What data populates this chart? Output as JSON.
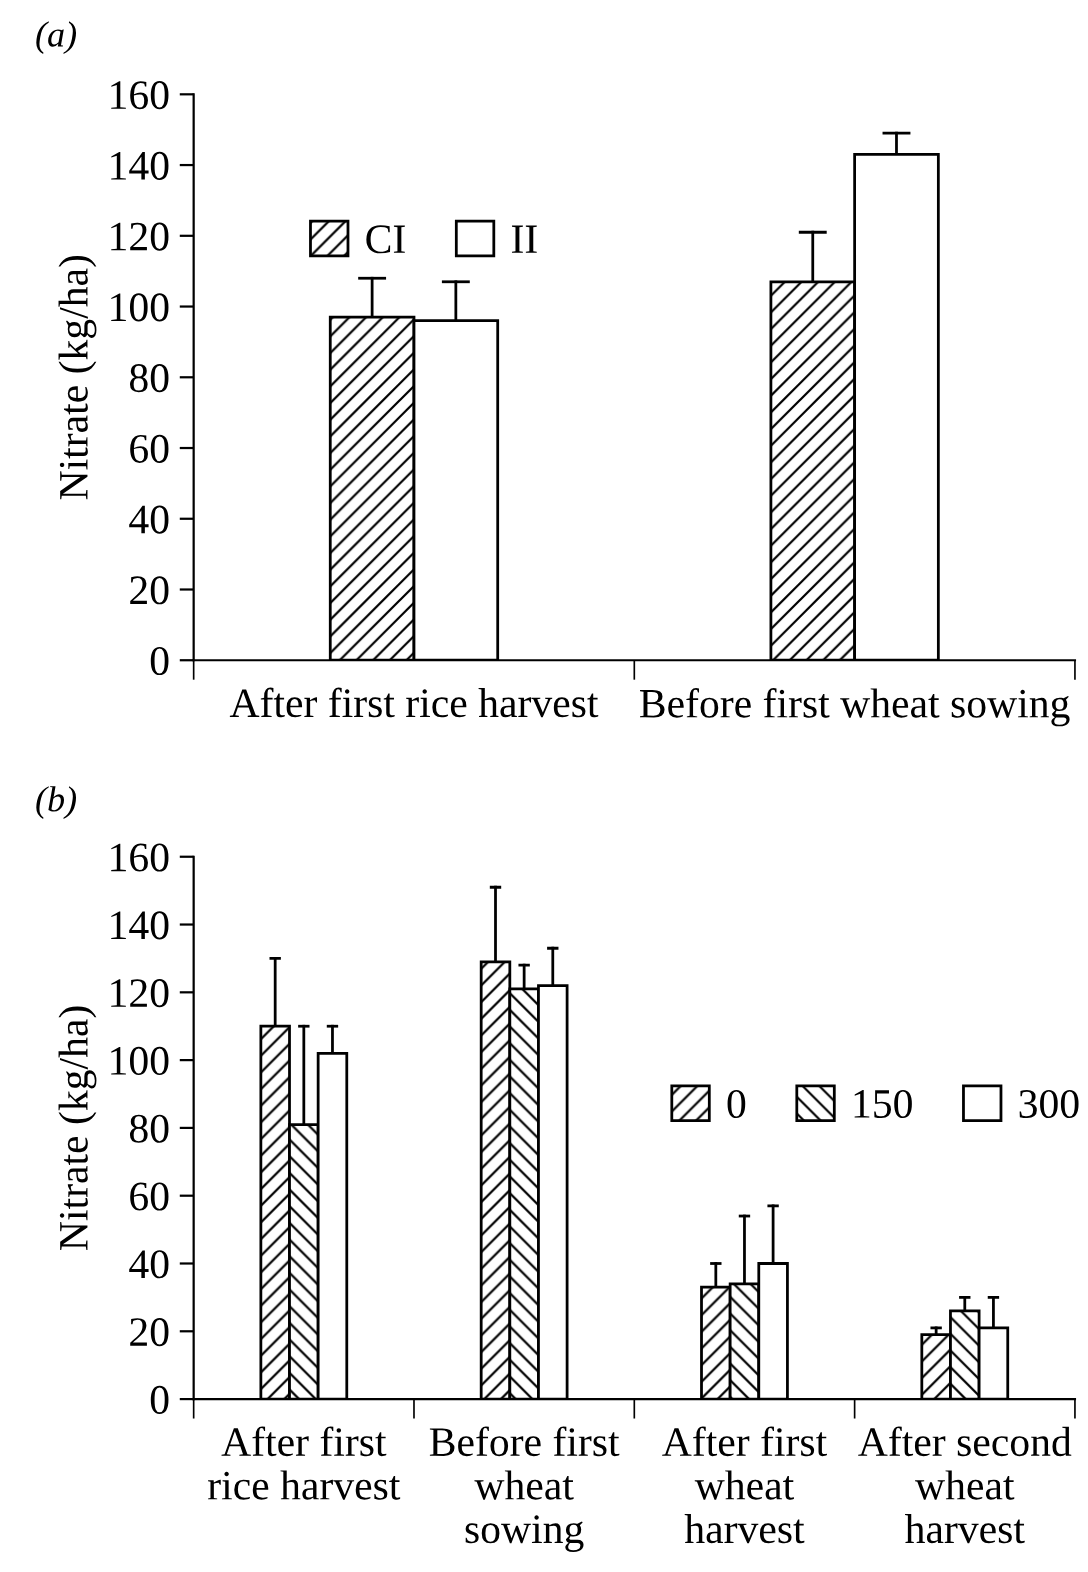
{
  "chart_data": [
    {
      "type": "bar",
      "title": "(a)",
      "ylabel": "Nitrate (kg/ha)",
      "categories": [
        "After first rice harvest",
        "Before first wheat sowing"
      ],
      "ylim": [
        0,
        160
      ],
      "yticks": [
        0,
        20,
        40,
        60,
        80,
        100,
        120,
        140,
        160
      ],
      "legend": "top left",
      "grid": false,
      "series": [
        {
          "name": "CI",
          "color": "#000000",
          "values": [
            97,
            107
          ],
          "errors": [
            [
              97,
              108
            ],
            [
              107,
              121
            ]
          ]
        },
        {
          "name": "II",
          "color": "#ffffff",
          "values": [
            96,
            143
          ],
          "errors": [
            [
              96,
              107
            ],
            [
              143,
              149
            ]
          ]
        }
      ]
    },
    {
      "type": "bar",
      "title": "(b)",
      "ylabel": "Nitrate (kg/ha)",
      "categories": [
        "After first\nrice harvest",
        "Before first\nwheat\nsowing",
        "After first\nwheat\nharvest",
        "After second\nwheat\nharvest"
      ],
      "ylim": [
        0,
        160
      ],
      "yticks": [
        0,
        20,
        40,
        60,
        80,
        100,
        120,
        140,
        160
      ],
      "legend": "right",
      "grid": false,
      "series": [
        {
          "name": "0",
          "color": "#000000",
          "values": [
            110,
            129,
            33,
            19
          ],
          "errors": [
            [
              110,
              130
            ],
            [
              129,
              151
            ],
            [
              33,
              40
            ],
            [
              19,
              21
            ]
          ]
        },
        {
          "name": "150",
          "color": "#000000",
          "values": [
            81,
            121,
            34,
            26
          ],
          "errors": [
            [
              81,
              110
            ],
            [
              121,
              128
            ],
            [
              34,
              54
            ],
            [
              26,
              30
            ]
          ]
        },
        {
          "name": "300",
          "color": "#ffffff",
          "values": [
            102,
            122,
            40,
            21
          ],
          "errors": [
            [
              102,
              110
            ],
            [
              122,
              133
            ],
            [
              40,
              57
            ],
            [
              21,
              30
            ]
          ]
        }
      ]
    }
  ]
}
